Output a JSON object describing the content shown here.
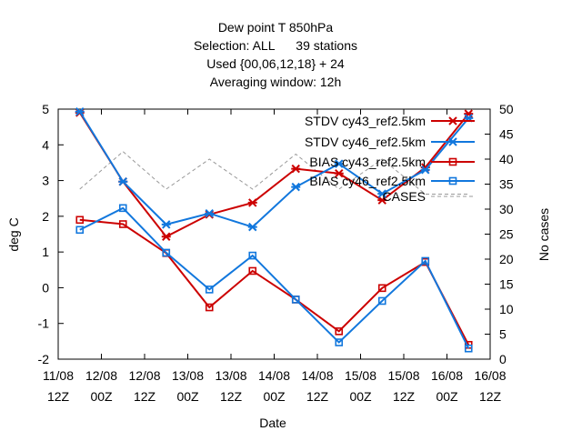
{
  "chart_data": {
    "type": "line",
    "title_lines": [
      "Dew point T 850hPa",
      "Selection: ALL      39 stations",
      "Used {00,06,12,18} + 24",
      "Averaging window: 12h"
    ],
    "xlabel": "Date",
    "ylabel": "deg C",
    "y2label": "No cases",
    "xlim": [
      0,
      10
    ],
    "ylim": [
      -2,
      5
    ],
    "y2lim": [
      0,
      50
    ],
    "x_ticks": [
      {
        "pos": 0,
        "line1": "11/08",
        "line2": "12Z"
      },
      {
        "pos": 1,
        "line1": "12/08",
        "line2": "00Z"
      },
      {
        "pos": 2,
        "line1": "12/08",
        "line2": "12Z"
      },
      {
        "pos": 3,
        "line1": "13/08",
        "line2": "00Z"
      },
      {
        "pos": 4,
        "line1": "13/08",
        "line2": "12Z"
      },
      {
        "pos": 5,
        "line1": "14/08",
        "line2": "00Z"
      },
      {
        "pos": 6,
        "line1": "14/08",
        "line2": "12Z"
      },
      {
        "pos": 7,
        "line1": "15/08",
        "line2": "00Z"
      },
      {
        "pos": 8,
        "line1": "15/08",
        "line2": "12Z"
      },
      {
        "pos": 9,
        "line1": "16/08",
        "line2": "00Z"
      },
      {
        "pos": 10,
        "line1": "16/08",
        "line2": "12Z"
      }
    ],
    "y_ticks": [
      -2,
      -1,
      0,
      1,
      2,
      3,
      4,
      5
    ],
    "y2_ticks": [
      0,
      5,
      10,
      15,
      20,
      25,
      30,
      35,
      40,
      45,
      50
    ],
    "x": [
      0.5,
      1.5,
      2.5,
      3.5,
      4.5,
      5.5,
      6.5,
      7.5,
      8.5,
      9.5
    ],
    "legend_position": "top-right",
    "series": [
      {
        "name": "STDV cy43_ref2.5km",
        "color": "#cc0000",
        "marker": "x",
        "axis": "left",
        "values": [
          4.9,
          2.97,
          1.43,
          2.05,
          2.38,
          3.33,
          3.2,
          2.45,
          3.37,
          4.87
        ]
      },
      {
        "name": "STDV cy46_ref2.5km",
        "color": "#1177dd",
        "marker": "x",
        "axis": "left",
        "values": [
          4.93,
          2.97,
          1.77,
          2.08,
          1.7,
          2.82,
          3.47,
          2.63,
          3.3,
          4.75
        ]
      },
      {
        "name": "BIAS cy43_ref2.5km",
        "color": "#cc0000",
        "marker": "square",
        "axis": "left",
        "values": [
          1.9,
          1.78,
          0.97,
          -0.55,
          0.47,
          -0.33,
          -1.22,
          -0.01,
          0.72,
          -1.6
        ]
      },
      {
        "name": "BIAS cy46_ref2.5km",
        "color": "#1177dd",
        "marker": "square",
        "axis": "left",
        "values": [
          1.62,
          2.23,
          0.98,
          -0.05,
          0.9,
          -0.33,
          -1.53,
          -0.37,
          0.75,
          -1.7
        ]
      },
      {
        "name": "CASES",
        "color": "#999999",
        "marker": "none",
        "dashed": true,
        "axis": "right",
        "values": [
          34,
          41.5,
          34,
          40,
          34,
          41,
          34,
          40,
          33,
          33
        ]
      }
    ]
  }
}
